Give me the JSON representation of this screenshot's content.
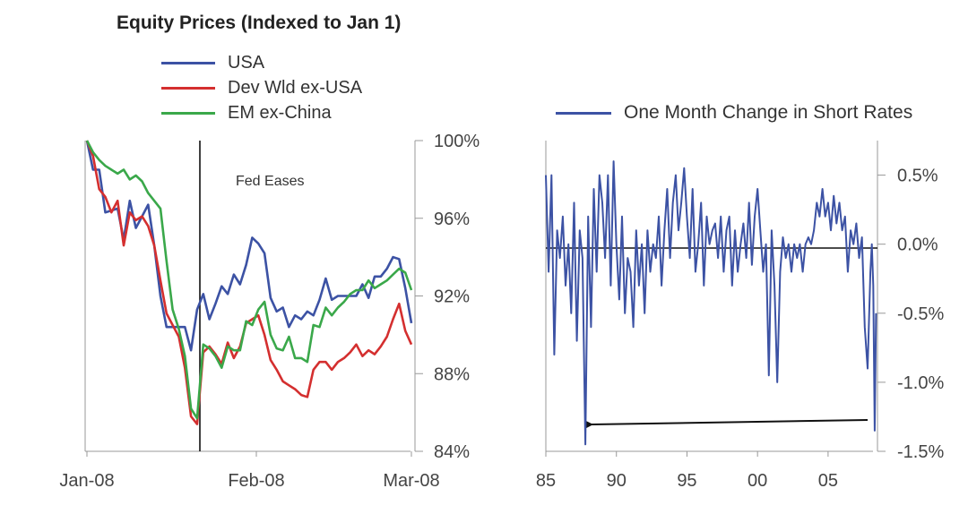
{
  "chart_data": [
    {
      "type": "line",
      "title": "Equity Prices (Indexed to Jan 1)",
      "annotation": "Fed Eases",
      "xlabels": [
        "Jan-08",
        "Feb-08",
        "Mar-08"
      ],
      "yticks": [
        "100%",
        "96%",
        "92%",
        "88%",
        "84%"
      ],
      "ylim": [
        84,
        100
      ],
      "y_axis_side": "right",
      "legend_position": "top",
      "grid": false,
      "series": [
        {
          "name": "USA",
          "color": "#3c52a4",
          "values": [
            100,
            98.5,
            98.5,
            96.3,
            96.4,
            96.5,
            94.9,
            96.9,
            95.5,
            96.1,
            96.7,
            94.6,
            92.0,
            90.4,
            90.4,
            90.4,
            90.4,
            89.2,
            91.3,
            92.1,
            90.8,
            91.6,
            92.5,
            92.1,
            93.1,
            92.6,
            93.6,
            95.0,
            94.7,
            94.2,
            91.9,
            91.2,
            91.4,
            90.4,
            91.0,
            90.8,
            91.2,
            91.0,
            91.8,
            92.9,
            91.8,
            92.0,
            92.0,
            92.0,
            92.0,
            92.6,
            91.9,
            93.0,
            93.0,
            93.4,
            94.0,
            93.9,
            92.4,
            90.6
          ]
        },
        {
          "name": "Dev Wld ex-USA",
          "color": "#d42f2f",
          "values": [
            100,
            99.2,
            97.5,
            97.1,
            96.3,
            96.9,
            94.6,
            96.3,
            95.9,
            96.1,
            95.6,
            94.6,
            92.8,
            91.1,
            90.5,
            89.9,
            88.3,
            85.8,
            85.4,
            89.1,
            89.4,
            89.0,
            88.5,
            89.6,
            88.8,
            89.4,
            90.6,
            90.8,
            91.0,
            90.0,
            88.7,
            88.2,
            87.6,
            87.4,
            87.2,
            86.9,
            86.8,
            88.2,
            88.6,
            88.6,
            88.2,
            88.6,
            88.8,
            89.1,
            89.5,
            88.9,
            89.2,
            89.0,
            89.4,
            89.9,
            90.8,
            91.6,
            90.2,
            89.5
          ]
        },
        {
          "name": "EM ex-China",
          "color": "#3aa84a",
          "values": [
            100,
            99.4,
            99.0,
            98.7,
            98.5,
            98.3,
            98.5,
            98.0,
            98.2,
            97.9,
            97.3,
            96.9,
            96.5,
            93.8,
            91.3,
            90.3,
            88.9,
            86.2,
            85.7,
            89.5,
            89.3,
            88.9,
            88.3,
            89.4,
            89.2,
            89.2,
            90.7,
            90.5,
            91.3,
            91.7,
            90.0,
            89.3,
            89.2,
            89.9,
            88.8,
            88.8,
            88.6,
            90.5,
            90.4,
            91.4,
            91.0,
            91.4,
            91.7,
            92.1,
            92.3,
            92.3,
            92.8,
            92.4,
            92.6,
            92.8,
            93.1,
            93.4,
            93.2,
            92.3
          ]
        }
      ]
    },
    {
      "type": "line",
      "xlabels": [
        "85",
        "90",
        "95",
        "00",
        "05"
      ],
      "xticks": [
        1985,
        1990,
        1995,
        2000,
        2005
      ],
      "yticks": [
        "0.5%",
        "0.0%",
        "-0.5%",
        "-1.0%",
        "-1.5%"
      ],
      "ylim": [
        -1.5,
        0.75
      ],
      "xlim": [
        1985,
        2008.5
      ],
      "y_axis_side": "right",
      "legend_position": "top",
      "grid": false,
      "series": [
        {
          "name": "One Month Change in Short Rates",
          "color": "#3c52a4",
          "x": [
            1985.0,
            1985.2,
            1985.4,
            1985.6,
            1985.8,
            1986.0,
            1986.2,
            1986.4,
            1986.6,
            1986.8,
            1987.0,
            1987.2,
            1987.4,
            1987.6,
            1987.8,
            1988.0,
            1988.2,
            1988.4,
            1988.6,
            1988.8,
            1989.0,
            1989.2,
            1989.4,
            1989.6,
            1989.8,
            1990.0,
            1990.2,
            1990.4,
            1990.6,
            1990.8,
            1991.0,
            1991.2,
            1991.4,
            1991.6,
            1991.8,
            1992.0,
            1992.2,
            1992.4,
            1992.6,
            1992.8,
            1993.0,
            1993.2,
            1993.4,
            1993.6,
            1993.8,
            1994.0,
            1994.2,
            1994.4,
            1994.6,
            1994.8,
            1995.0,
            1995.2,
            1995.4,
            1995.6,
            1995.8,
            1996.0,
            1996.2,
            1996.4,
            1996.6,
            1996.8,
            1997.0,
            1997.2,
            1997.4,
            1997.6,
            1997.8,
            1998.0,
            1998.2,
            1998.4,
            1998.6,
            1998.8,
            1999.0,
            1999.2,
            1999.4,
            1999.6,
            1999.8,
            2000.0,
            2000.2,
            2000.4,
            2000.6,
            2000.8,
            2001.0,
            2001.2,
            2001.4,
            2001.6,
            2001.8,
            2002.0,
            2002.2,
            2002.4,
            2002.6,
            2002.8,
            2003.0,
            2003.2,
            2003.4,
            2003.6,
            2003.8,
            2004.0,
            2004.2,
            2004.4,
            2004.6,
            2004.8,
            2005.0,
            2005.2,
            2005.4,
            2005.6,
            2005.8,
            2006.0,
            2006.2,
            2006.4,
            2006.6,
            2006.8,
            2007.0,
            2007.2,
            2007.4,
            2007.6,
            2007.8,
            2008.0,
            2008.1,
            2008.2,
            2008.3,
            2008.4
          ],
          "values": [
            0.5,
            -0.2,
            0.5,
            -0.8,
            0.1,
            -0.1,
            0.2,
            -0.3,
            0.0,
            -0.5,
            0.3,
            -0.7,
            0.1,
            -0.1,
            -1.45,
            0.2,
            -0.6,
            0.4,
            -0.2,
            0.5,
            0.3,
            -0.1,
            0.5,
            -0.3,
            0.6,
            0.0,
            -0.4,
            0.2,
            -0.5,
            -0.1,
            -0.2,
            -0.6,
            0.1,
            -0.3,
            0.0,
            -0.5,
            0.1,
            -0.2,
            0.0,
            -0.1,
            0.2,
            -0.3,
            0.1,
            0.4,
            -0.1,
            0.3,
            0.5,
            0.1,
            0.3,
            0.55,
            0.2,
            -0.1,
            0.4,
            -0.2,
            0.0,
            0.3,
            -0.3,
            0.2,
            0.0,
            0.1,
            0.15,
            -0.1,
            0.2,
            -0.2,
            0.1,
            0.2,
            -0.3,
            0.1,
            -0.2,
            0.0,
            0.15,
            -0.1,
            0.3,
            -0.15,
            0.2,
            0.4,
            0.1,
            -0.2,
            0.0,
            -0.95,
            0.1,
            -0.3,
            -1.0,
            -0.2,
            0.05,
            -0.1,
            0.0,
            -0.2,
            0.0,
            -0.1,
            0.0,
            -0.2,
            0.0,
            0.05,
            0.0,
            0.1,
            0.3,
            0.2,
            0.4,
            0.2,
            0.3,
            0.1,
            0.35,
            0.15,
            0.3,
            0.1,
            0.2,
            -0.2,
            0.1,
            0.0,
            0.15,
            -0.1,
            0.05,
            -0.6,
            -0.9,
            -0.2,
            0.0,
            -0.3,
            -1.35,
            -0.5
          ]
        }
      ]
    }
  ]
}
